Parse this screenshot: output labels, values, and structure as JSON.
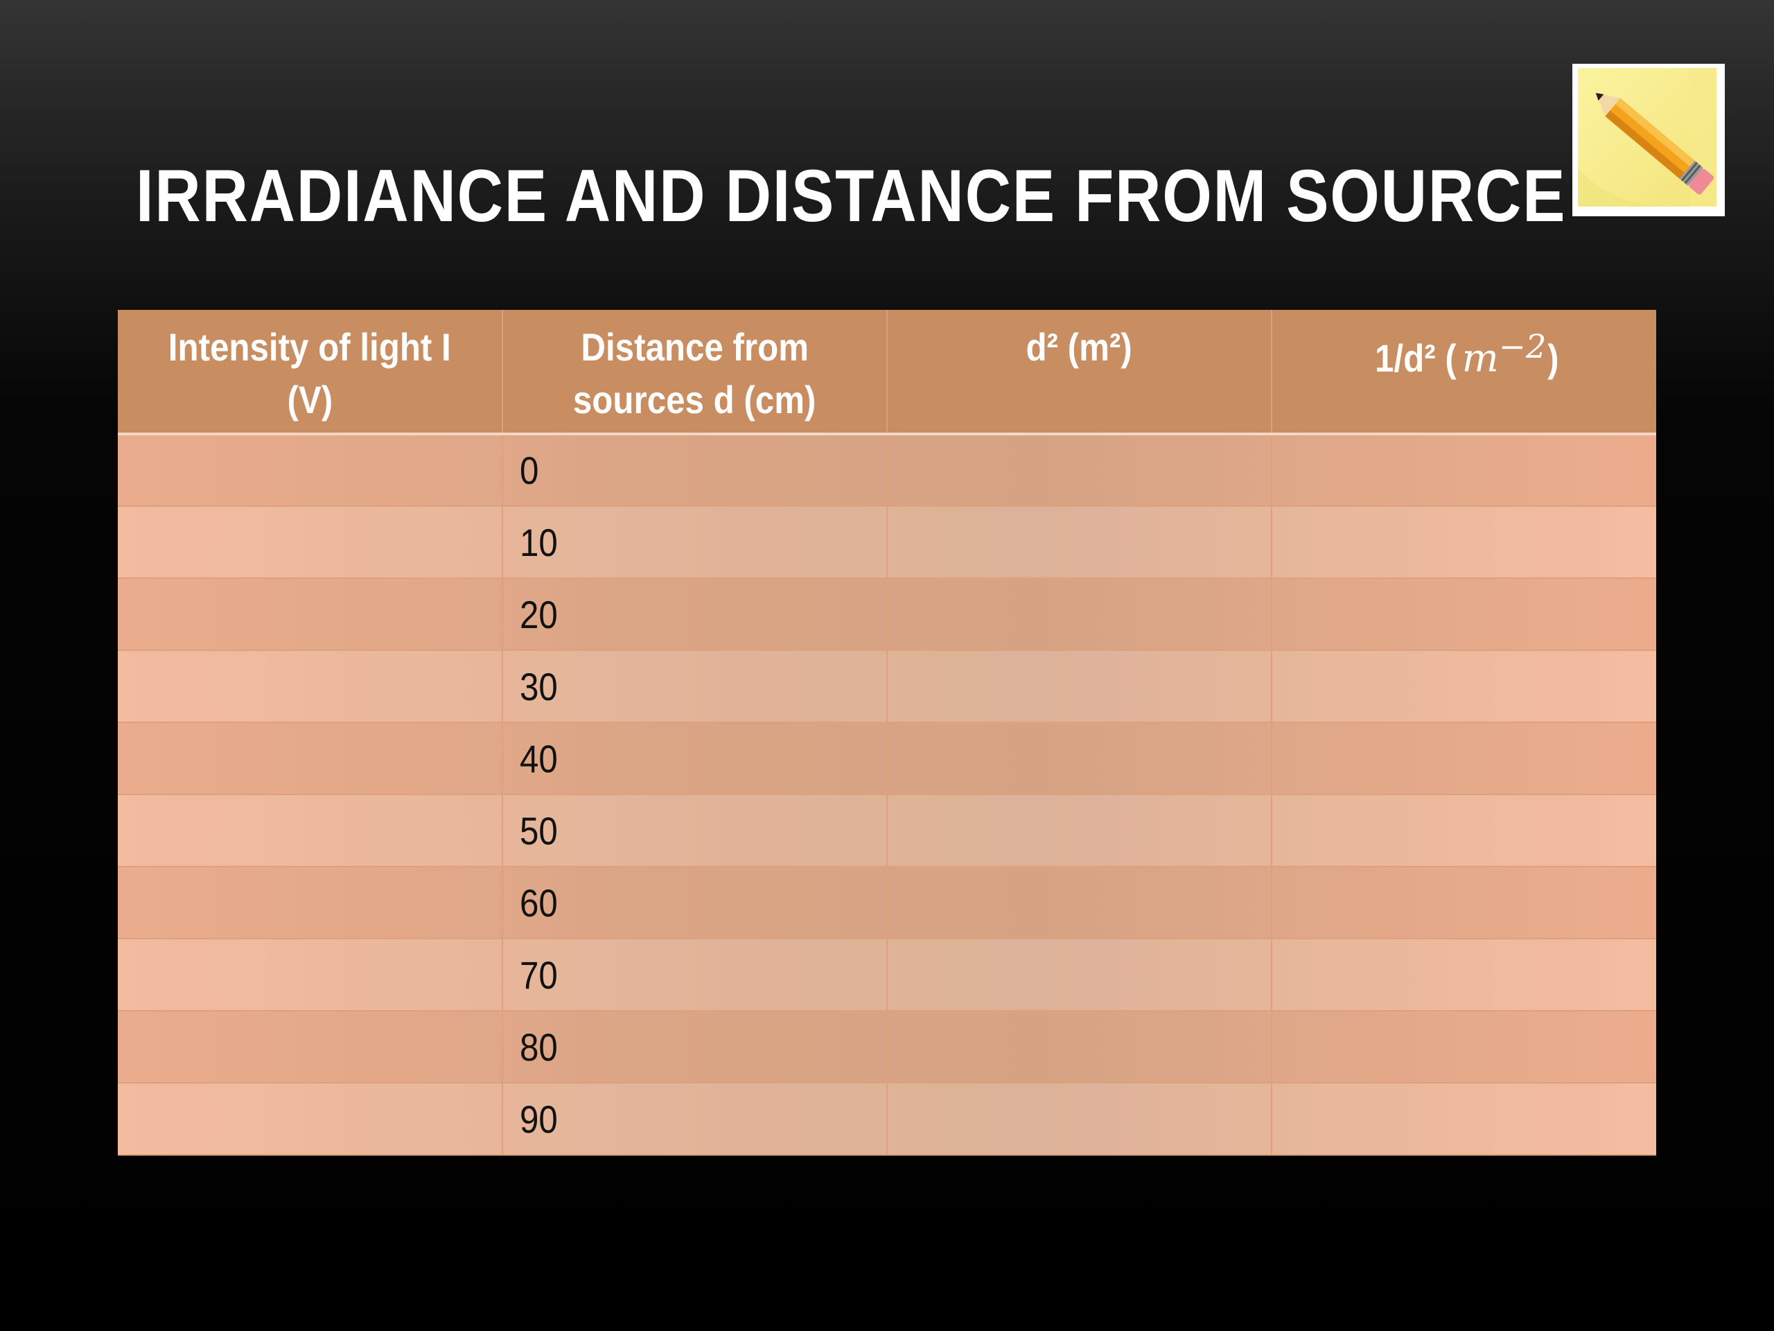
{
  "slide": {
    "title": "IRRADIANCE AND DISTANCE FROM SOURCE",
    "icon": "note-pencil-icon"
  },
  "table": {
    "headers": {
      "col1_line1": "Intensity of light I",
      "col1_line2": "(V)",
      "col2_line1": "Distance from",
      "col2_line2": "sources d (cm)",
      "col3": "d² (m²)",
      "col4_prefix": "1/d² (",
      "col4_math": "m",
      "col4_exp": "−2",
      "col4_suffix": ")"
    },
    "rows": [
      {
        "distance": "0"
      },
      {
        "distance": "10"
      },
      {
        "distance": "20"
      },
      {
        "distance": "30"
      },
      {
        "distance": "40"
      },
      {
        "distance": "50"
      },
      {
        "distance": "60"
      },
      {
        "distance": "70"
      },
      {
        "distance": "80"
      },
      {
        "distance": "90"
      }
    ]
  },
  "colors": {
    "header_bg": "#c98d62",
    "row_light": "#f4b89c",
    "row_mid": "#dcae92"
  }
}
